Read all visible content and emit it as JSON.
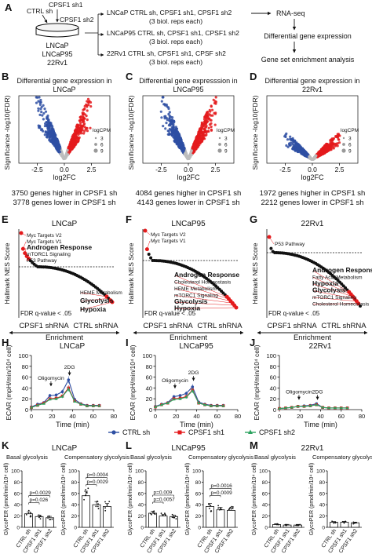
{
  "design": {
    "panel_A": {
      "letter": "A",
      "dish_conditions": [
        "CTRL sh",
        "CPSF1 sh1",
        "CPSF1 sh2"
      ],
      "cell_lines": [
        "LNCaP",
        "LNCaP95",
        "22Rv1"
      ],
      "groups": [
        {
          "line1": "LNCaP CTRL sh, CPSF1 sh1, CPSF1 sh2",
          "line2": "(3 biol. reps each)"
        },
        {
          "line1": "LNCaP95 CTRL sh, CPSF1 sh1, CPSF1 sh2",
          "line2": "(3 biol. reps each)"
        },
        {
          "line1": "22Rv1 CTRL sh, CPSF1 sh1, CPSF sh2",
          "line2": "(3 biol. reps each)"
        }
      ],
      "workflow": [
        "RNA-seq",
        "Differential gene expression",
        "Gene set enrichment analysis"
      ]
    }
  },
  "colors": {
    "red": "#e41a1c",
    "blue": "#2e4fa3",
    "gray": "#bdbdbd",
    "green": "#2ca25f"
  },
  "chart_data": [
    {
      "type": "scatter",
      "letter": "B",
      "title": "Differential gene expression in LNCaP",
      "title_lines": [
        "Differential gene expression in",
        "LNCaP"
      ],
      "xlabel": "log2FC",
      "ylabel": "Significance -log10(FDR)",
      "xticks": [
        "-2.5",
        "0.0",
        "2.5"
      ],
      "legend": {
        "title": "logCPM",
        "items": [
          "3",
          "6",
          "9"
        ]
      },
      "higher_text": "3750 genes higher in CPSF1 sh",
      "lower_text": "3778 genes lower in CPSF1 sh",
      "series": [
        {
          "color": "blue",
          "n_genes": 3778
        },
        {
          "color": "red",
          "n_genes": 3750
        }
      ]
    },
    {
      "type": "scatter",
      "letter": "C",
      "title": "Differential gene expresssion in LNCaP95",
      "title_lines": [
        "Differential gene expresssion in",
        "LNCaP95"
      ],
      "xlabel": "log2FC",
      "ylabel": "Significance -log10(FDR)",
      "xticks": [
        "-2.5",
        "0.0",
        "2.5"
      ],
      "legend": {
        "title": "logCPM",
        "items": [
          "3",
          "6",
          "9"
        ]
      },
      "higher_text": "4084 genes higher in CPSF1 sh",
      "lower_text": "4143 genes lower in CPSF1 sh",
      "series": [
        {
          "color": "blue",
          "n_genes": 4143
        },
        {
          "color": "red",
          "n_genes": 4084
        }
      ]
    },
    {
      "type": "scatter",
      "letter": "D",
      "title": "Differential gene expression in 22Rv1",
      "title_lines": [
        "Differential gene expression in",
        "22Rv1"
      ],
      "xlabel": "log2FC",
      "ylabel": "Significance -log10(FDR)",
      "xticks": [
        "-2.5",
        "0.0",
        "2.5"
      ],
      "legend": {
        "title": "logCPM",
        "items": [
          "3",
          "6",
          "9"
        ]
      },
      "higher_text": "1972 genes higher in CPSF1 sh",
      "lower_text": "2212 genes lower in CPSF1 sh",
      "series": [
        {
          "color": "blue",
          "n_genes": 2212
        },
        {
          "color": "red",
          "n_genes": 1972
        }
      ]
    },
    {
      "type": "scatter",
      "letter": "E",
      "title": "LNCaP",
      "ylabel": "Hallmark NES Score",
      "fdr_text": "FDR q-value < .05",
      "left_label": "CPSF1 shRNA",
      "right_label": "CTRL shRNA",
      "arrow_label": "Enrichment",
      "up_labels": [
        {
          "text": "Myc Targets V2",
          "bold": false,
          "rank": 1
        },
        {
          "text": "Myc Targets V1",
          "bold": false,
          "rank": 2
        },
        {
          "text": "Androgen Response",
          "bold": true,
          "rank": 3
        },
        {
          "text": "mTORC1 Signaling",
          "bold": false,
          "rank": 4
        },
        {
          "text": "P53 Pathway",
          "bold": false,
          "rank": 5
        }
      ],
      "down_labels": [
        {
          "text": "HEME Metabolism",
          "bold": false,
          "rank": 4
        },
        {
          "text": "Glycolysis",
          "bold": true,
          "rank": 3
        },
        {
          "text": "Hypoxia",
          "bold": true,
          "rank": 1
        }
      ]
    },
    {
      "type": "scatter",
      "letter": "F",
      "title": "LNCaP95",
      "ylabel": "Hallmark NES Score",
      "fdr_text": "FDR q-value < .05",
      "left_label": "CPSF1 shRNA",
      "right_label": "CTRL shRNA",
      "arrow_label": "Enrichment",
      "up_labels": [
        {
          "text": "Myc Targets V2",
          "bold": false,
          "rank": 1
        },
        {
          "text": "Myc Targets V1",
          "bold": false,
          "rank": 2
        }
      ],
      "down_labels": [
        {
          "text": "Androgen Response",
          "bold": true,
          "rank": 6
        },
        {
          "text": "Cholesterol Homeostasis",
          "bold": false,
          "rank": 5
        },
        {
          "text": "HEME Metabolism",
          "bold": false,
          "rank": 4
        },
        {
          "text": "mTORC1 Signaling",
          "bold": false,
          "rank": 3
        },
        {
          "text": "Glycolysis",
          "bold": true,
          "rank": 2
        },
        {
          "text": "Hypoxia",
          "bold": true,
          "rank": 1
        }
      ]
    },
    {
      "type": "scatter",
      "letter": "G",
      "title": "22Rv1",
      "ylabel": "Hallmark NES Score",
      "fdr_text": "FDR q-value < .05",
      "left_label": "CPSF1 shRNA",
      "right_label": "CTRL shRNA",
      "arrow_label": "Enrichment",
      "up_labels": [
        {
          "text": "P53 Pathway",
          "bold": false,
          "rank": 1
        }
      ],
      "down_labels": [
        {
          "text": "Androgen Response",
          "bold": true,
          "rank": 7
        },
        {
          "text": "Fatty Acid Metabolism",
          "bold": false,
          "rank": 6
        },
        {
          "text": "Hypoxia",
          "bold": true,
          "rank": 5
        },
        {
          "text": "Glycolysis",
          "bold": true,
          "rank": 4
        },
        {
          "text": "mTORC1 Signaling",
          "bold": false,
          "rank": 3
        },
        {
          "text": "Cholesterol Homeostasis",
          "bold": false,
          "rank": 2
        }
      ]
    },
    {
      "type": "line",
      "letter": "H",
      "title": "LNCaP",
      "xlabel": "Time (min)",
      "ylabel": "ECAR (mpH/min/10⁴ cell)",
      "xlim": [
        0,
        80
      ],
      "ylim": [
        0,
        100
      ],
      "xticks": [
        0,
        20,
        40,
        60,
        80
      ],
      "yticks": [
        0,
        20,
        40,
        60,
        80,
        100
      ],
      "annotations": [
        {
          "text": "Oligomycin",
          "x": 19,
          "y": 42
        },
        {
          "text": "2DG",
          "x": 37,
          "y": 62
        }
      ],
      "x": [
        0,
        6,
        12,
        18,
        24,
        30,
        36,
        42,
        48,
        54,
        60,
        66
      ],
      "series": [
        {
          "color": "blue",
          "values": [
            5,
            10,
            13,
            26,
            27,
            33,
            55,
            19,
            11,
            8,
            8,
            8
          ]
        },
        {
          "color": "red",
          "values": [
            4,
            8,
            12,
            20,
            21,
            25,
            40,
            16,
            10,
            7,
            7,
            7
          ]
        },
        {
          "color": "green",
          "values": [
            4,
            8,
            11,
            19,
            20,
            24,
            38,
            15,
            10,
            7,
            7,
            7
          ]
        }
      ]
    },
    {
      "type": "line",
      "letter": "I",
      "title": "LNCaP95",
      "xlabel": "Time (min)",
      "ylabel": "ECAR (mpH/min/10⁴ cell)",
      "xlim": [
        0,
        80
      ],
      "ylim": [
        0,
        100
      ],
      "xticks": [
        0,
        20,
        40,
        60,
        80
      ],
      "yticks": [
        0,
        20,
        40,
        60,
        80,
        100
      ],
      "annotations": [
        {
          "text": "Oligomycin",
          "x": 19,
          "y": 38
        },
        {
          "text": "2DG",
          "x": 37,
          "y": 52
        }
      ],
      "x": [
        0,
        6,
        12,
        18,
        24,
        30,
        36,
        42,
        48,
        54,
        60,
        66
      ],
      "series": [
        {
          "color": "blue",
          "values": [
            6,
            10,
            13,
            24,
            26,
            30,
            42,
            14,
            10,
            8,
            8,
            8
          ]
        },
        {
          "color": "red",
          "values": [
            5,
            9,
            12,
            20,
            21,
            24,
            36,
            12,
            9,
            7,
            7,
            7
          ]
        },
        {
          "color": "green",
          "values": [
            5,
            9,
            12,
            19,
            20,
            23,
            35,
            12,
            9,
            7,
            7,
            7
          ]
        }
      ]
    },
    {
      "type": "line",
      "letter": "J",
      "title": "22Rv1",
      "xlabel": "Time (min)",
      "ylabel": "ECAR (mpH/min/10⁴ cell)",
      "xlim": [
        0,
        80
      ],
      "ylim": [
        0,
        100
      ],
      "xticks": [
        0,
        20,
        40,
        60,
        80
      ],
      "yticks": [
        0,
        20,
        40,
        60,
        80,
        100
      ],
      "annotations": [
        {
          "text": "Oligomycin",
          "x": 19,
          "y": 17
        },
        {
          "text": "2DG",
          "x": 37,
          "y": 17
        }
      ],
      "x": [
        0,
        6,
        12,
        18,
        24,
        30,
        36,
        42,
        48,
        54,
        60,
        66
      ],
      "series": [
        {
          "color": "blue",
          "values": [
            2,
            3,
            4,
            6,
            7,
            8,
            11,
            4,
            3,
            3,
            3,
            3
          ]
        },
        {
          "color": "red",
          "values": [
            2,
            3,
            4,
            6,
            6,
            7,
            9,
            4,
            3,
            3,
            3,
            3
          ]
        },
        {
          "color": "green",
          "values": [
            2,
            3,
            4,
            6,
            6,
            7,
            9,
            4,
            3,
            3,
            3,
            3
          ]
        }
      ]
    },
    {
      "type": "bar",
      "letter": "K",
      "title": "LNCaP",
      "ylabel": "GlycoPER (pmol/min/10⁴ cell)",
      "yticks": [
        0,
        20,
        40,
        60,
        80,
        100
      ],
      "ylim": [
        0,
        100
      ],
      "categories": [
        "CTRL sh",
        "CPSF1 sh1",
        "CPSF1 sh2"
      ],
      "panels": [
        {
          "subtitle": "Basal glycolysis",
          "values": [
            24,
            19,
            17
          ],
          "pvalues": [
            {
              "text": "p=0.0029",
              "from": 0,
              "to": 2
            },
            {
              "text": "p=0.026",
              "from": 0,
              "to": 1
            }
          ]
        },
        {
          "subtitle": "Compensatory glycolysis",
          "values": [
            56,
            40,
            37
          ],
          "pvalues": [
            {
              "text": "p=0.0004",
              "from": 0,
              "to": 2
            },
            {
              "text": "p=0.0029",
              "from": 0,
              "to": 1
            }
          ]
        }
      ]
    },
    {
      "type": "bar",
      "letter": "L",
      "title": "LNCaP95",
      "ylabel": "GlycoPER (pmol/min/10⁴ cell)",
      "yticks": [
        0,
        20,
        40,
        60,
        80,
        100
      ],
      "ylim": [
        0,
        100
      ],
      "categories": [
        "CTRL sh",
        "CPSF1 sh1",
        "CPSF1 sh2"
      ],
      "panels": [
        {
          "subtitle": "Basal glycolysis",
          "values": [
            25,
            20,
            19
          ],
          "pvalues": [
            {
              "text": "p=0.009",
              "from": 0,
              "to": 2
            },
            {
              "text": "p=0.0057",
              "from": 0,
              "to": 1
            }
          ]
        },
        {
          "subtitle": "Compensatory glycolysis",
          "values": [
            37,
            31,
            30
          ],
          "pvalues": [
            {
              "text": "p=0.0016",
              "from": 0,
              "to": 2
            },
            {
              "text": "p=0.0009",
              "from": 0,
              "to": 1
            }
          ]
        }
      ]
    },
    {
      "type": "bar",
      "letter": "M",
      "title": "22Rv1",
      "ylabel": "GlycoPER (pmol/min/10⁴ cell)",
      "yticks": [
        0,
        20,
        40,
        60,
        80,
        100
      ],
      "ylim": [
        0,
        100
      ],
      "categories": [
        "CTRL sh",
        "CPSF1 sh1",
        "CPSF1 sh2"
      ],
      "panels": [
        {
          "subtitle": "Basal glycolysis",
          "values": [
            5,
            4,
            4
          ],
          "pvalues": []
        },
        {
          "subtitle": "Compensatory glycolysis",
          "values": [
            9,
            9,
            8
          ],
          "pvalues": []
        }
      ]
    }
  ],
  "legend_HIJ": [
    "CTRL sh",
    "CPSF1 sh1",
    "CPSF1 sh2"
  ]
}
